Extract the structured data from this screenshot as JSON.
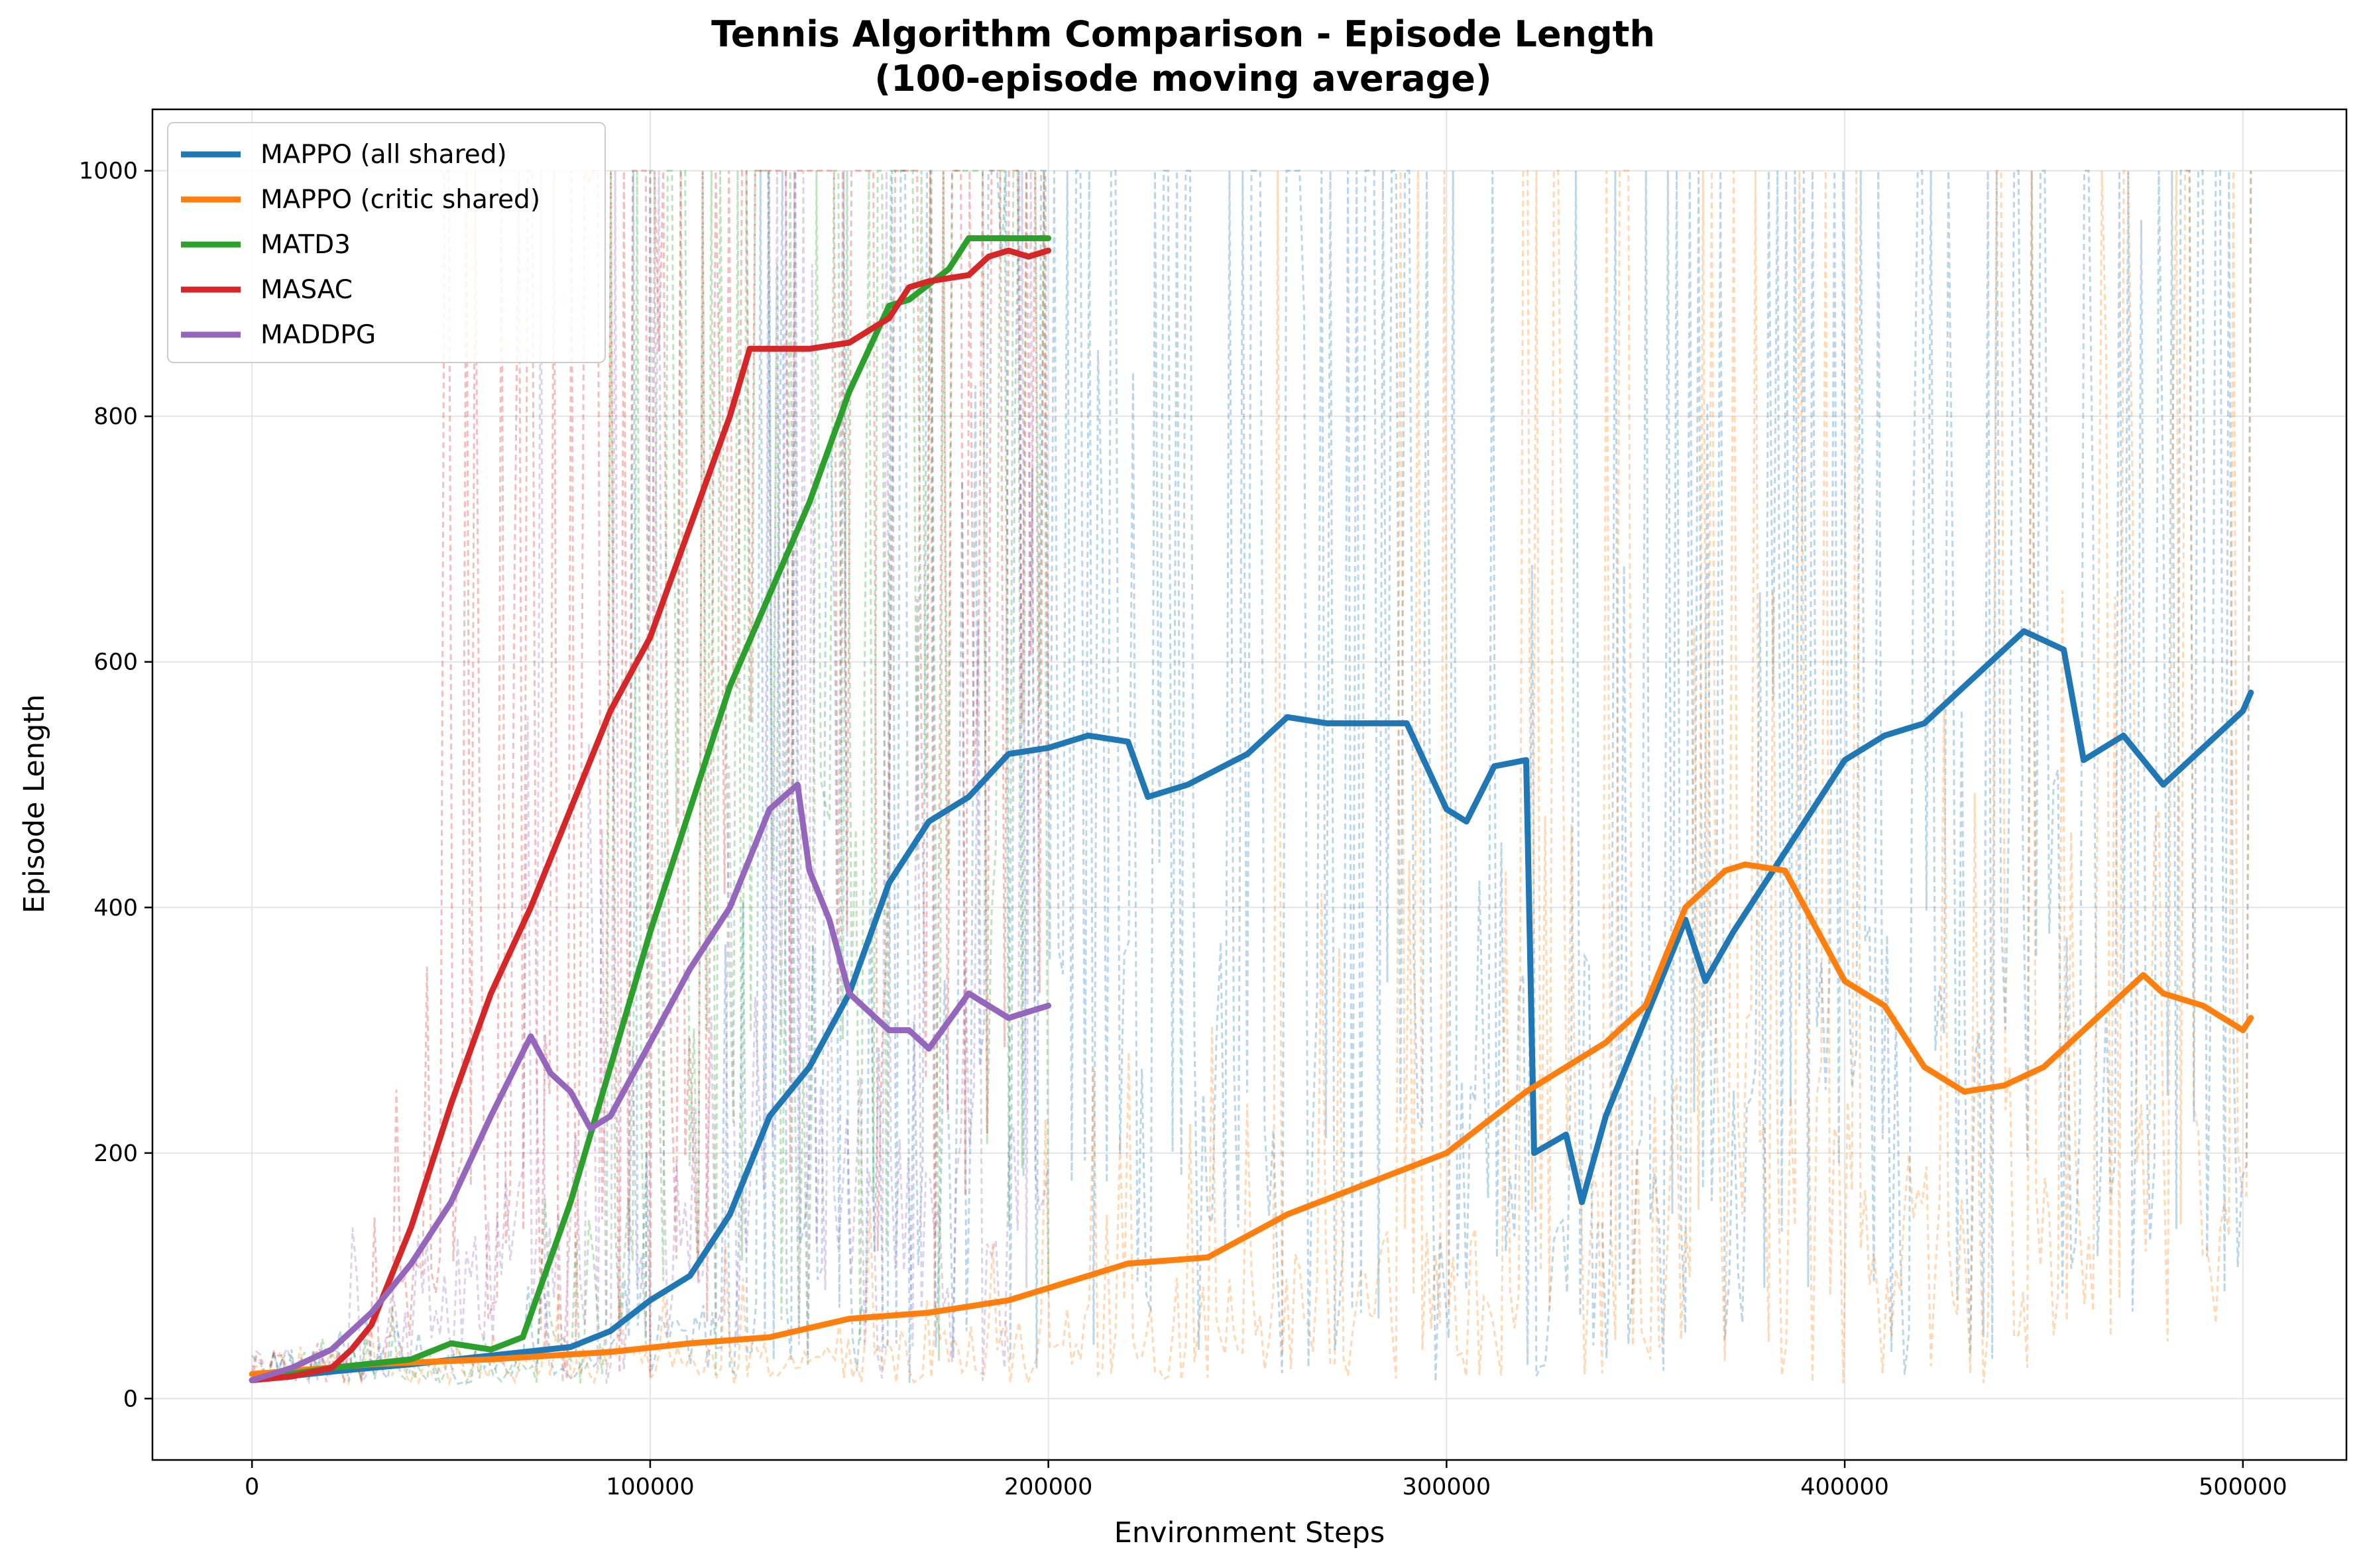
{
  "chart_data": {
    "type": "line",
    "title": "Tennis Algorithm Comparison - Episode Length",
    "subtitle": "(100-episode moving average)",
    "xlabel": "Environment Steps",
    "ylabel": "Episode Length",
    "xlim": [
      -25000,
      526000
    ],
    "ylim": [
      -50,
      1050
    ],
    "xticks": [
      0,
      100000,
      200000,
      300000,
      400000,
      500000
    ],
    "yticks": [
      0,
      200,
      400,
      600,
      800,
      1000
    ],
    "grid": true,
    "legend_position": "top-left",
    "note": "Faint dashed lines show raw per-episode lengths (values between ~10 and 1000) behind each moving average.",
    "series": [
      {
        "name": "MAPPO (all shared)",
        "color": "#1f77b4",
        "raw_extent": [
          0,
          502000
        ],
        "x": [
          0,
          20000,
          40000,
          60000,
          80000,
          90000,
          100000,
          110000,
          120000,
          130000,
          140000,
          150000,
          160000,
          170000,
          180000,
          190000,
          200000,
          210000,
          220000,
          225000,
          235000,
          250000,
          260000,
          270000,
          280000,
          290000,
          300000,
          305000,
          312000,
          320000,
          322000,
          330000,
          334000,
          340000,
          350000,
          360000,
          365000,
          372000,
          380000,
          390000,
          400000,
          410000,
          420000,
          430000,
          440000,
          445000,
          455000,
          460000,
          470000,
          480000,
          490000,
          500000,
          502000
        ],
        "y": [
          15,
          22,
          28,
          35,
          42,
          55,
          80,
          100,
          150,
          230,
          270,
          330,
          420,
          470,
          490,
          525,
          530,
          540,
          535,
          490,
          500,
          525,
          555,
          550,
          550,
          550,
          480,
          470,
          515,
          520,
          200,
          215,
          160,
          230,
          310,
          390,
          340,
          380,
          420,
          470,
          520,
          540,
          550,
          580,
          610,
          625,
          610,
          520,
          540,
          500,
          530,
          560,
          575
        ]
      },
      {
        "name": "MAPPO (critic shared)",
        "color": "#ff7f0e",
        "raw_extent": [
          0,
          502000
        ],
        "x": [
          0,
          30000,
          60000,
          90000,
          110000,
          130000,
          150000,
          170000,
          190000,
          200000,
          220000,
          240000,
          260000,
          280000,
          300000,
          320000,
          340000,
          350000,
          360000,
          370000,
          375000,
          385000,
          390000,
          400000,
          410000,
          420000,
          430000,
          440000,
          450000,
          460000,
          475000,
          480000,
          490000,
          500000,
          502000
        ],
        "y": [
          20,
          28,
          32,
          38,
          45,
          50,
          65,
          70,
          80,
          90,
          110,
          115,
          150,
          175,
          200,
          250,
          290,
          320,
          400,
          430,
          435,
          430,
          400,
          340,
          320,
          270,
          250,
          255,
          270,
          300,
          345,
          330,
          320,
          300,
          310
        ]
      },
      {
        "name": "MATD3",
        "color": "#2ca02c",
        "raw_extent": [
          0,
          200000
        ],
        "x": [
          0,
          20000,
          40000,
          50000,
          60000,
          68000,
          80000,
          100000,
          120000,
          140000,
          150000,
          160000,
          165000,
          175000,
          180000,
          190000,
          195000,
          200000
        ],
        "y": [
          15,
          25,
          32,
          45,
          40,
          50,
          160,
          380,
          580,
          730,
          820,
          890,
          895,
          920,
          945,
          945,
          945,
          945
        ]
      },
      {
        "name": "MASAC",
        "color": "#d62728",
        "raw_extent": [
          0,
          200000
        ],
        "x": [
          0,
          10000,
          20000,
          25000,
          30000,
          40000,
          50000,
          60000,
          70000,
          80000,
          90000,
          100000,
          110000,
          120000,
          125000,
          130000,
          140000,
          150000,
          160000,
          165000,
          170000,
          180000,
          185000,
          190000,
          195000,
          200000
        ],
        "y": [
          15,
          18,
          25,
          40,
          60,
          140,
          240,
          330,
          400,
          480,
          560,
          620,
          710,
          800,
          855,
          855,
          855,
          860,
          880,
          905,
          910,
          915,
          930,
          935,
          930,
          935
        ]
      },
      {
        "name": "MADDPG",
        "color": "#9467bd",
        "raw_extent": [
          0,
          200000
        ],
        "x": [
          0,
          10000,
          20000,
          30000,
          40000,
          50000,
          60000,
          70000,
          75000,
          80000,
          85000,
          90000,
          100000,
          110000,
          120000,
          130000,
          137000,
          140000,
          145000,
          150000,
          160000,
          165000,
          170000,
          180000,
          185000,
          190000,
          200000
        ],
        "y": [
          15,
          25,
          40,
          70,
          110,
          160,
          230,
          295,
          265,
          250,
          220,
          230,
          290,
          350,
          400,
          480,
          500,
          430,
          390,
          330,
          300,
          300,
          285,
          330,
          320,
          310,
          320
        ]
      }
    ]
  }
}
